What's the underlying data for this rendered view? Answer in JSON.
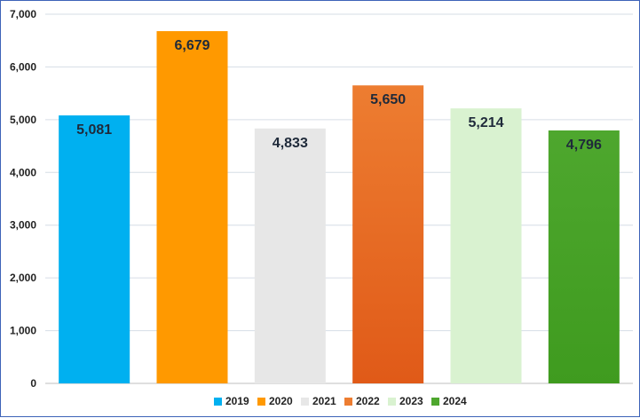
{
  "chart_data": {
    "type": "bar",
    "title": "",
    "xlabel": "",
    "ylabel": "",
    "ylim": [
      0,
      7000
    ],
    "yticks": [
      0,
      1000,
      2000,
      3000,
      4000,
      5000,
      6000,
      7000
    ],
    "ytick_labels": [
      "0",
      "1,000",
      "2,000",
      "3,000",
      "4,000",
      "5,000",
      "6,000",
      "7,000"
    ],
    "grid": true,
    "legend_position": "bottom",
    "categories": [
      "2019",
      "2020",
      "2021",
      "2022",
      "2023",
      "2024"
    ],
    "values": [
      5081,
      6679,
      4833,
      5650,
      5214,
      4796
    ],
    "value_labels": [
      "5,081",
      "6,679",
      "4,833",
      "5,650",
      "5,214",
      "4,796"
    ],
    "colors": [
      "#00b0f0",
      "#ff9900",
      "#e7e7e7",
      "#ed7d31",
      "#d9f2d0",
      "#4ea72e"
    ],
    "gradient_end_colors": [
      "#00b0f0",
      "#ff9900",
      "#e7e7e7",
      "#e05a18",
      "#d9f2d0",
      "#3f9b1f"
    ]
  }
}
